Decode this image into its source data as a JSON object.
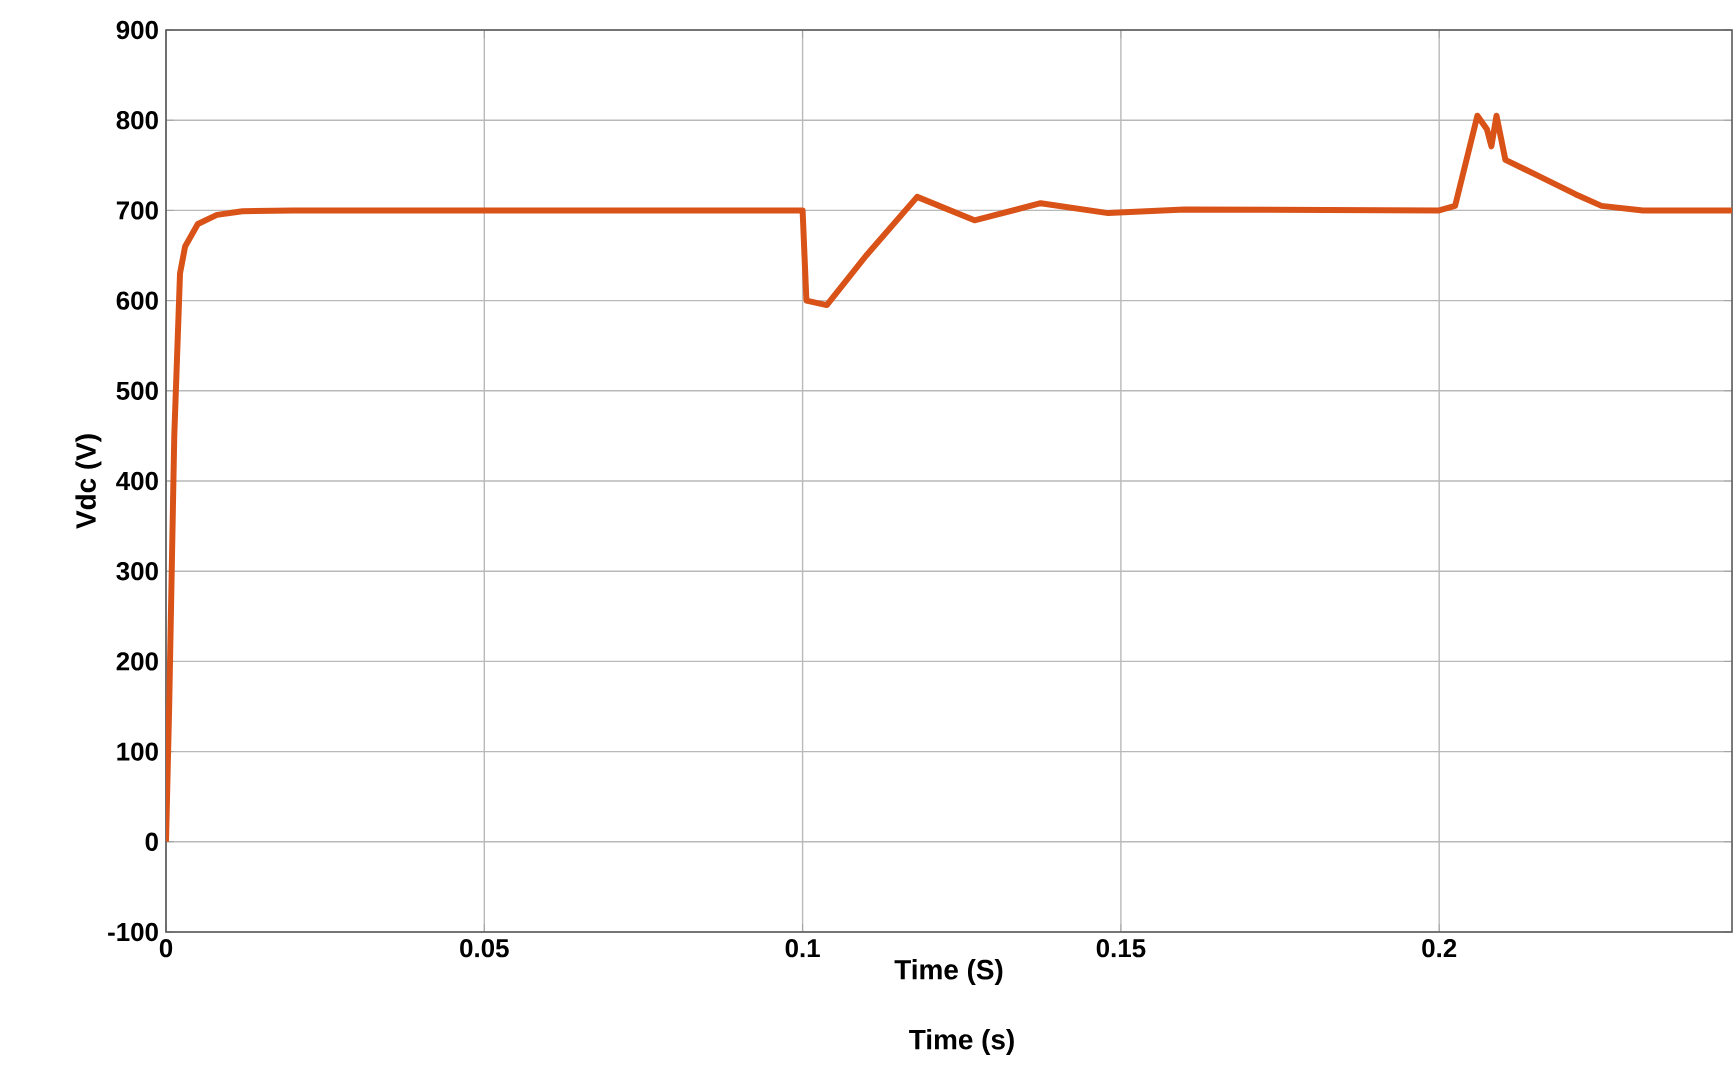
{
  "chart_data": {
    "type": "line",
    "xlabel": "Time (S)",
    "ylabel": "Vdc (V)",
    "annotations": [
      "Time (s)"
    ],
    "xlim": [
      0,
      0.246
    ],
    "ylim": [
      -100,
      900
    ],
    "xticks": [
      0,
      0.05,
      0.1,
      0.15,
      0.2
    ],
    "yticks": [
      -100,
      0,
      100,
      200,
      300,
      400,
      500,
      600,
      700,
      800,
      900
    ],
    "grid": true,
    "series": [
      {
        "color": "#d95319",
        "x": [
          0,
          0.0005,
          0.0013,
          0.0022,
          0.003,
          0.005,
          0.008,
          0.012,
          0.02,
          0.1,
          0.1006,
          0.1038,
          0.11,
          0.118,
          0.127,
          0.1374,
          0.148,
          0.16,
          0.2,
          0.2025,
          0.206,
          0.2075,
          0.2082,
          0.209,
          0.2104,
          0.2151,
          0.2214,
          0.2255,
          0.232,
          0.246
        ],
        "values": [
          0,
          150,
          450,
          630,
          660,
          685,
          695,
          699,
          700,
          700,
          600,
          595,
          650,
          715,
          689,
          708,
          697,
          701,
          700,
          705,
          805,
          790,
          771,
          805,
          756,
          740,
          718,
          705,
          700,
          700
        ]
      }
    ]
  }
}
